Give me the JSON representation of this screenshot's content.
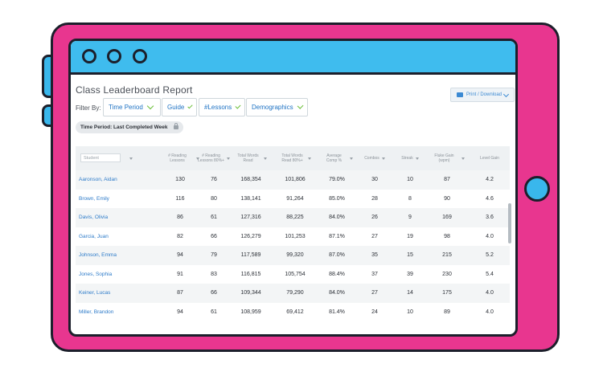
{
  "report": {
    "title": "Class Leaderboard Report",
    "filter_label": "Filter By:",
    "filters": [
      {
        "label": "Time Period"
      },
      {
        "label": "Guide"
      },
      {
        "label": "#Lessons"
      },
      {
        "label": "Demographics"
      }
    ],
    "print_label": "Print / Download",
    "time_period_pill": "Time Period: Last Completed Week"
  },
  "table": {
    "student_placeholder": "Student",
    "headers": [
      "# Reading Lessons",
      "# Reading Lessons 80%+",
      "Total Words Read",
      "Total Words Read 80%+",
      "Average Comp %",
      "Combos",
      "Streak",
      "Fluke Gain (wpm)",
      "Level Gain"
    ],
    "rows": [
      {
        "name": "Aaronson, Aidan",
        "lessons": "130",
        "lessons80": "76",
        "words": "168,354",
        "words80": "101,806",
        "comp": "79.0%",
        "combos": "30",
        "streak": "10",
        "fluke": "87",
        "level": "4.2"
      },
      {
        "name": "Brown, Emily",
        "lessons": "116",
        "lessons80": "80",
        "words": "138,141",
        "words80": "91,264",
        "comp": "85.0%",
        "combos": "28",
        "streak": "8",
        "fluke": "90",
        "level": "4.6"
      },
      {
        "name": "Davis, Olivia",
        "lessons": "86",
        "lessons80": "61",
        "words": "127,316",
        "words80": "88,225",
        "comp": "84.0%",
        "combos": "26",
        "streak": "9",
        "fluke": "169",
        "level": "3.6"
      },
      {
        "name": "Garcia, Juan",
        "lessons": "82",
        "lessons80": "66",
        "words": "126,279",
        "words80": "101,253",
        "comp": "87.1%",
        "combos": "27",
        "streak": "19",
        "fluke": "98",
        "level": "4.0"
      },
      {
        "name": "Johnson, Emma",
        "lessons": "94",
        "lessons80": "79",
        "words": "117,589",
        "words80": "99,320",
        "comp": "87.0%",
        "combos": "35",
        "streak": "15",
        "fluke": "215",
        "level": "5.2"
      },
      {
        "name": "Jones, Sophia",
        "lessons": "91",
        "lessons80": "83",
        "words": "116,815",
        "words80": "105,754",
        "comp": "88.4%",
        "combos": "37",
        "streak": "39",
        "fluke": "230",
        "level": "5.4"
      },
      {
        "name": "Keiner, Lucas",
        "lessons": "87",
        "lessons80": "66",
        "words": "109,344",
        "words80": "79,290",
        "comp": "84.0%",
        "combos": "27",
        "streak": "14",
        "fluke": "175",
        "level": "4.0"
      },
      {
        "name": "Miller, Brandon",
        "lessons": "94",
        "lessons80": "61",
        "words": "108,959",
        "words80": "69,412",
        "comp": "81.4%",
        "combos": "24",
        "streak": "10",
        "fluke": "89",
        "level": "4.0"
      }
    ]
  },
  "colors": {
    "frame": "#e8368f",
    "topbar": "#3fbcee",
    "link": "#2d7bc9",
    "accent_green": "#6cbf3a"
  }
}
